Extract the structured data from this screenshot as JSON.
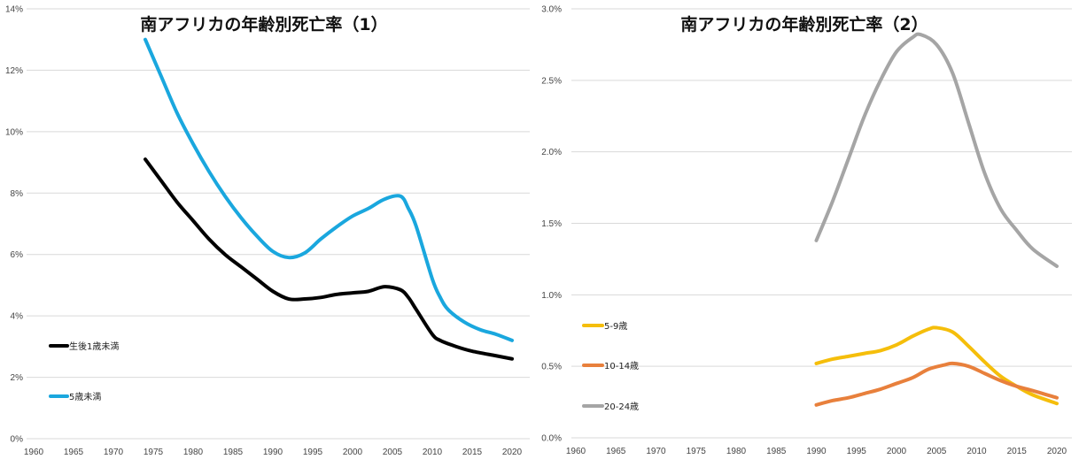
{
  "chart_data": [
    {
      "type": "line",
      "title": "南アフリカの年齢別死亡率（1）",
      "xlabel": "",
      "ylabel": "",
      "xlim": [
        1960,
        2020
      ],
      "ylim": [
        0,
        14
      ],
      "x_ticks": [
        "1960",
        "1965",
        "1970",
        "1975",
        "1980",
        "1985",
        "1990",
        "1995",
        "2000",
        "2005",
        "2010",
        "2015",
        "2020"
      ],
      "y_ticks": [
        "0%",
        "2%",
        "4%",
        "6%",
        "8%",
        "10%",
        "12%",
        "14%"
      ],
      "y_tick_values": [
        0,
        2,
        4,
        6,
        8,
        10,
        12,
        14
      ],
      "grid": true,
      "legend_position": "bottom-left",
      "series": [
        {
          "name": "生後1歳未満",
          "color": "#000000",
          "x": [
            1974,
            1976,
            1978,
            1980,
            1982,
            1984,
            1986,
            1988,
            1990,
            1992,
            1994,
            1996,
            1998,
            2000,
            2002,
            2004,
            2006,
            2007,
            2008,
            2010,
            2011,
            2013,
            2015,
            2018,
            2020
          ],
          "values": [
            9.1,
            8.4,
            7.7,
            7.1,
            6.5,
            6.0,
            5.6,
            5.2,
            4.8,
            4.55,
            4.55,
            4.6,
            4.7,
            4.75,
            4.8,
            4.95,
            4.85,
            4.6,
            4.2,
            3.4,
            3.2,
            3.0,
            2.85,
            2.7,
            2.6
          ]
        },
        {
          "name": "5歳未満",
          "color": "#1AA7DE",
          "x": [
            1974,
            1976,
            1978,
            1980,
            1982,
            1984,
            1986,
            1988,
            1990,
            1992,
            1994,
            1996,
            1998,
            2000,
            2002,
            2004,
            2006,
            2007,
            2008,
            2010,
            2011,
            2012,
            2014,
            2016,
            2018,
            2020
          ],
          "values": [
            13.0,
            11.8,
            10.6,
            9.6,
            8.7,
            7.9,
            7.2,
            6.6,
            6.1,
            5.9,
            6.05,
            6.5,
            6.9,
            7.25,
            7.5,
            7.8,
            7.9,
            7.5,
            6.9,
            5.2,
            4.6,
            4.2,
            3.8,
            3.55,
            3.4,
            3.2
          ]
        }
      ]
    },
    {
      "type": "line",
      "title": "南アフリカの年齢別死亡率（2）",
      "xlabel": "",
      "ylabel": "",
      "xlim": [
        1960,
        2020
      ],
      "ylim": [
        0,
        3
      ],
      "x_ticks": [
        "1960",
        "1965",
        "1970",
        "1975",
        "1980",
        "1985",
        "1990",
        "1995",
        "2000",
        "2005",
        "2010",
        "2015",
        "2020"
      ],
      "y_ticks": [
        "0.0%",
        "0.5%",
        "1.0%",
        "1.5%",
        "2.0%",
        "2.5%",
        "3.0%"
      ],
      "y_tick_values": [
        0,
        0.5,
        1,
        1.5,
        2,
        2.5,
        3
      ],
      "grid": true,
      "legend_position": "bottom-left",
      "series": [
        {
          "name": "5-9歳",
          "color": "#F5BE0B",
          "x": [
            1990,
            1992,
            1994,
            1996,
            1998,
            2000,
            2002,
            2004,
            2005,
            2007,
            2009,
            2011,
            2013,
            2015,
            2017,
            2020
          ],
          "values": [
            0.52,
            0.55,
            0.57,
            0.59,
            0.61,
            0.65,
            0.71,
            0.76,
            0.77,
            0.74,
            0.64,
            0.53,
            0.43,
            0.36,
            0.3,
            0.24
          ]
        },
        {
          "name": "10-14歳",
          "color": "#E8803C",
          "x": [
            1990,
            1992,
            1994,
            1996,
            1998,
            2000,
            2002,
            2004,
            2006,
            2007,
            2009,
            2011,
            2013,
            2015,
            2017,
            2020
          ],
          "values": [
            0.23,
            0.26,
            0.28,
            0.31,
            0.34,
            0.38,
            0.42,
            0.48,
            0.51,
            0.52,
            0.5,
            0.45,
            0.4,
            0.36,
            0.33,
            0.28
          ]
        },
        {
          "name": "20-24歳",
          "color": "#A5A5A5",
          "x": [
            1990,
            1992,
            1994,
            1996,
            1998,
            2000,
            2002,
            2003,
            2005,
            2007,
            2009,
            2011,
            2013,
            2015,
            2017,
            2020
          ],
          "values": [
            1.38,
            1.65,
            1.95,
            2.25,
            2.5,
            2.7,
            2.8,
            2.82,
            2.75,
            2.55,
            2.2,
            1.85,
            1.6,
            1.45,
            1.32,
            1.2
          ]
        }
      ]
    }
  ]
}
